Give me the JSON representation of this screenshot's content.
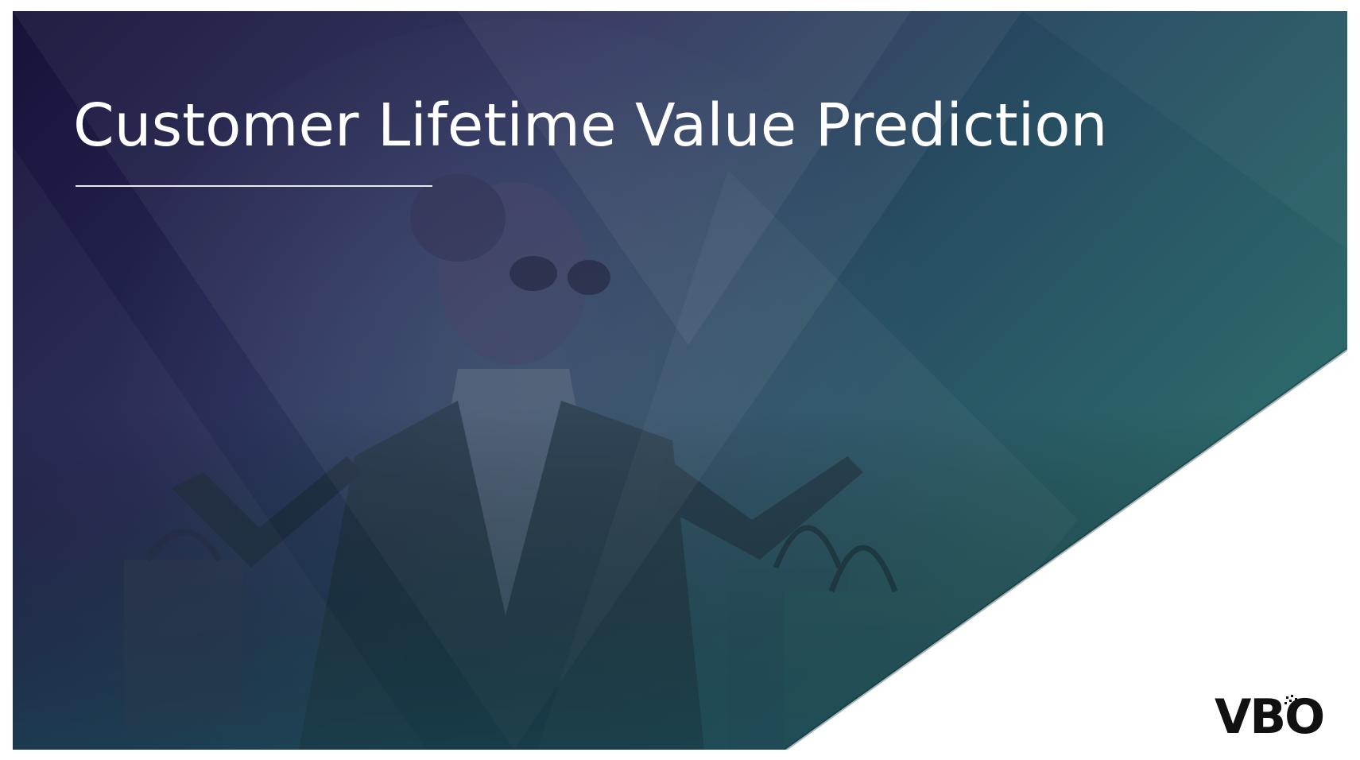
{
  "slide": {
    "title": "Customer Lifetime Value Prediction",
    "background_image": "woman-with-shopping-bags-photo",
    "gradient_colors": [
      "#1a1640",
      "#2a4f63",
      "#2c6a6a"
    ]
  },
  "logo": {
    "text": "VBO",
    "color": "#111111"
  }
}
